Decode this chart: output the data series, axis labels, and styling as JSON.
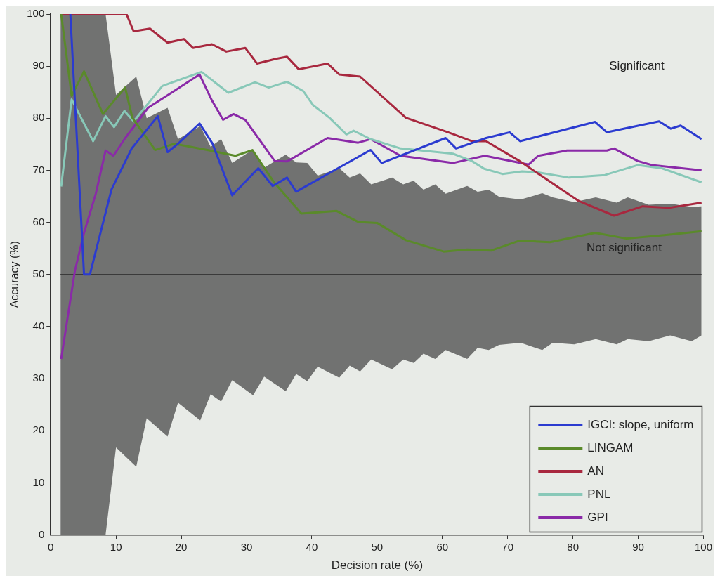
{
  "chart_data": {
    "type": "line",
    "xlabel": "Decision rate (%)",
    "ylabel": "Accuracy (%)",
    "xlim": [
      0,
      100
    ],
    "ylim": [
      0,
      100
    ],
    "xticks": [
      0,
      10,
      20,
      30,
      40,
      50,
      60,
      70,
      80,
      90,
      100
    ],
    "yticks": [
      0,
      10,
      20,
      30,
      40,
      50,
      60,
      70,
      80,
      90,
      100
    ],
    "grid": false,
    "legend": "bottom right",
    "line_style": "solid",
    "marker": "none",
    "annotations": [
      "Significant",
      "Not significant"
    ],
    "series": [
      {
        "color": "#3a3a3a",
        "x": [
          1.5,
          8.4,
          10,
          13.1,
          14.7,
          17.9,
          19.5,
          22.9,
          24.5,
          26.1,
          27.8,
          31,
          32.7,
          36,
          37.6,
          39.3,
          40.9,
          44.2,
          45.8,
          47.4,
          49.1,
          52.3,
          54,
          55.6,
          57.1,
          58.9,
          60.5,
          63.8,
          65.4,
          67.1,
          68.7,
          72,
          75.3,
          76.9,
          80.2,
          83.5,
          86.7,
          88.4,
          91.6,
          94.9,
          98.2,
          99.7
        ],
        "values": [
          50,
          50,
          50,
          50,
          50,
          50,
          50,
          50,
          50,
          50,
          50,
          50,
          50,
          50,
          50,
          50,
          50,
          50,
          50,
          50,
          50,
          50,
          50,
          50,
          50,
          50,
          50,
          50,
          50,
          50,
          50,
          50,
          50,
          50,
          50,
          50,
          50,
          50,
          50,
          50,
          50,
          50
        ],
        "lower": [
          0,
          0,
          16.8,
          13.1,
          22.4,
          18.9,
          25.4,
          22,
          27,
          25.6,
          29.7,
          26.8,
          30.4,
          27.6,
          30.9,
          29.5,
          32.3,
          30.2,
          32.5,
          31.4,
          33.7,
          31.8,
          33.7,
          33,
          34.8,
          33.8,
          35.5,
          33.8,
          35.9,
          35.5,
          36.5,
          36.9,
          35.5,
          36.9,
          36.6,
          37.6,
          36.6,
          37.6,
          37.2,
          38.3,
          37.2,
          38.3
        ],
        "upper": [
          100,
          100,
          84.5,
          88,
          80,
          82,
          76,
          78.5,
          74.5,
          76,
          71.4,
          74,
          70.5,
          73,
          71.5,
          71.4,
          69,
          70.4,
          68.6,
          69.4,
          67.3,
          68.6,
          67.3,
          68,
          66.3,
          67.3,
          65.5,
          67,
          65.9,
          66.3,
          64.9,
          64.4,
          65.6,
          64.8,
          63.9,
          64.8,
          63.8,
          64.8,
          63.4,
          63.6,
          63,
          63.1
        ]
      },
      {
        "name": "IGCI: slope, uniform",
        "color": "#2b3bd0",
        "x": [
          3.0,
          5.1,
          6.0,
          9.3,
          12.4,
          16.4,
          17.9,
          19.5,
          22.8,
          24.8,
          27.8,
          31.8,
          34.0,
          36.2,
          37.6,
          49.0,
          50.7,
          60.5,
          62.1,
          66.7,
          70.3,
          71.9,
          83.4,
          85.2,
          93.2,
          95.0,
          96.5,
          99.7
        ],
        "values": [
          100,
          50,
          50,
          66.3,
          74.2,
          80.4,
          73.5,
          75.1,
          79,
          75.1,
          65.2,
          70.4,
          67,
          68.6,
          65.9,
          73.9,
          71.4,
          76.2,
          74.2,
          76.2,
          77.3,
          75.6,
          79.3,
          77.3,
          79.4,
          78,
          78.6,
          76
        ]
      },
      {
        "name": "LINGAM",
        "color": "#5a8a2a",
        "x": [
          1.6,
          3.2,
          5.1,
          8.0,
          11.4,
          12.5,
          16.0,
          18.9,
          24.4,
          28.3,
          30.9,
          34.2,
          38.4,
          43.8,
          47.1,
          50.0,
          54.4,
          60.2,
          63.8,
          67.5,
          71.8,
          76.5,
          83.4,
          88.2,
          94.3,
          99.7
        ],
        "values": [
          100,
          84.3,
          89,
          80.8,
          85.9,
          80.1,
          73.9,
          75.1,
          73.8,
          72.8,
          73.9,
          67.7,
          61.7,
          62.2,
          60.1,
          59.9,
          56.6,
          54.4,
          54.8,
          54.6,
          56.5,
          56.2,
          58,
          56.9,
          57.6,
          58.3
        ]
      },
      {
        "name": "AN",
        "color": "#a8283f",
        "x": [
          1.5,
          11.6,
          12.7,
          15.2,
          17.9,
          20.4,
          21.8,
          24.7,
          26.9,
          29.8,
          31.6,
          34.5,
          36.2,
          38.0,
          42.4,
          44.2,
          47.4,
          54.4,
          60.9,
          64.5,
          66.7,
          71.8,
          80.9,
          86.3,
          90.7,
          94.7,
          99.7
        ],
        "values": [
          100,
          100,
          96.7,
          97.2,
          94.5,
          95.2,
          93.5,
          94.2,
          92.8,
          93.5,
          90.5,
          91.4,
          91.8,
          89.4,
          90.5,
          88.4,
          88,
          80.1,
          77.3,
          75.6,
          75.6,
          71.8,
          64.1,
          61.3,
          63.1,
          62.8,
          63.8
        ]
      },
      {
        "name": "PNL",
        "color": "#88c8b8",
        "x": [
          1.6,
          3.2,
          6.5,
          8.4,
          9.7,
          11.3,
          12.7,
          17.1,
          23.1,
          27.2,
          31.3,
          33.4,
          36.2,
          38.7,
          40.2,
          42.7,
          45.3,
          46.4,
          49.0,
          53.6,
          61.6,
          64.5,
          66.4,
          69.2,
          72.2,
          74.7,
          79.4,
          84.9,
          89.9,
          93.6,
          99.7
        ],
        "values": [
          66.9,
          83.6,
          75.6,
          80.4,
          78.3,
          81.4,
          79.4,
          86.2,
          88.9,
          84.9,
          86.9,
          85.9,
          87,
          85.2,
          82.5,
          80.1,
          76.9,
          77.6,
          76,
          74.2,
          73.2,
          71.8,
          70.3,
          69.3,
          69.8,
          69.6,
          68.6,
          69.1,
          71,
          70.4,
          67.7
        ]
      },
      {
        "name": "GPI",
        "color": "#8a2aa8",
        "x": [
          1.6,
          3.7,
          5.1,
          6.9,
          8.4,
          9.6,
          11.3,
          14.9,
          18.5,
          22.8,
          24.7,
          26.4,
          28.0,
          29.8,
          34.3,
          36.2,
          42.4,
          47.1,
          49.0,
          53.6,
          61.6,
          66.5,
          73.2,
          74.7,
          79.1,
          85.2,
          86.3,
          89.9,
          92.1,
          99.7
        ],
        "values": [
          33.8,
          50.7,
          58,
          65.5,
          73.8,
          72.8,
          76,
          82,
          84.9,
          88.4,
          83.4,
          79.7,
          80.8,
          79.7,
          71.8,
          71.7,
          76.2,
          75.3,
          76,
          72.8,
          71.4,
          72.8,
          71.1,
          72.8,
          73.8,
          73.8,
          74.2,
          71.8,
          71,
          70
        ]
      }
    ]
  }
}
